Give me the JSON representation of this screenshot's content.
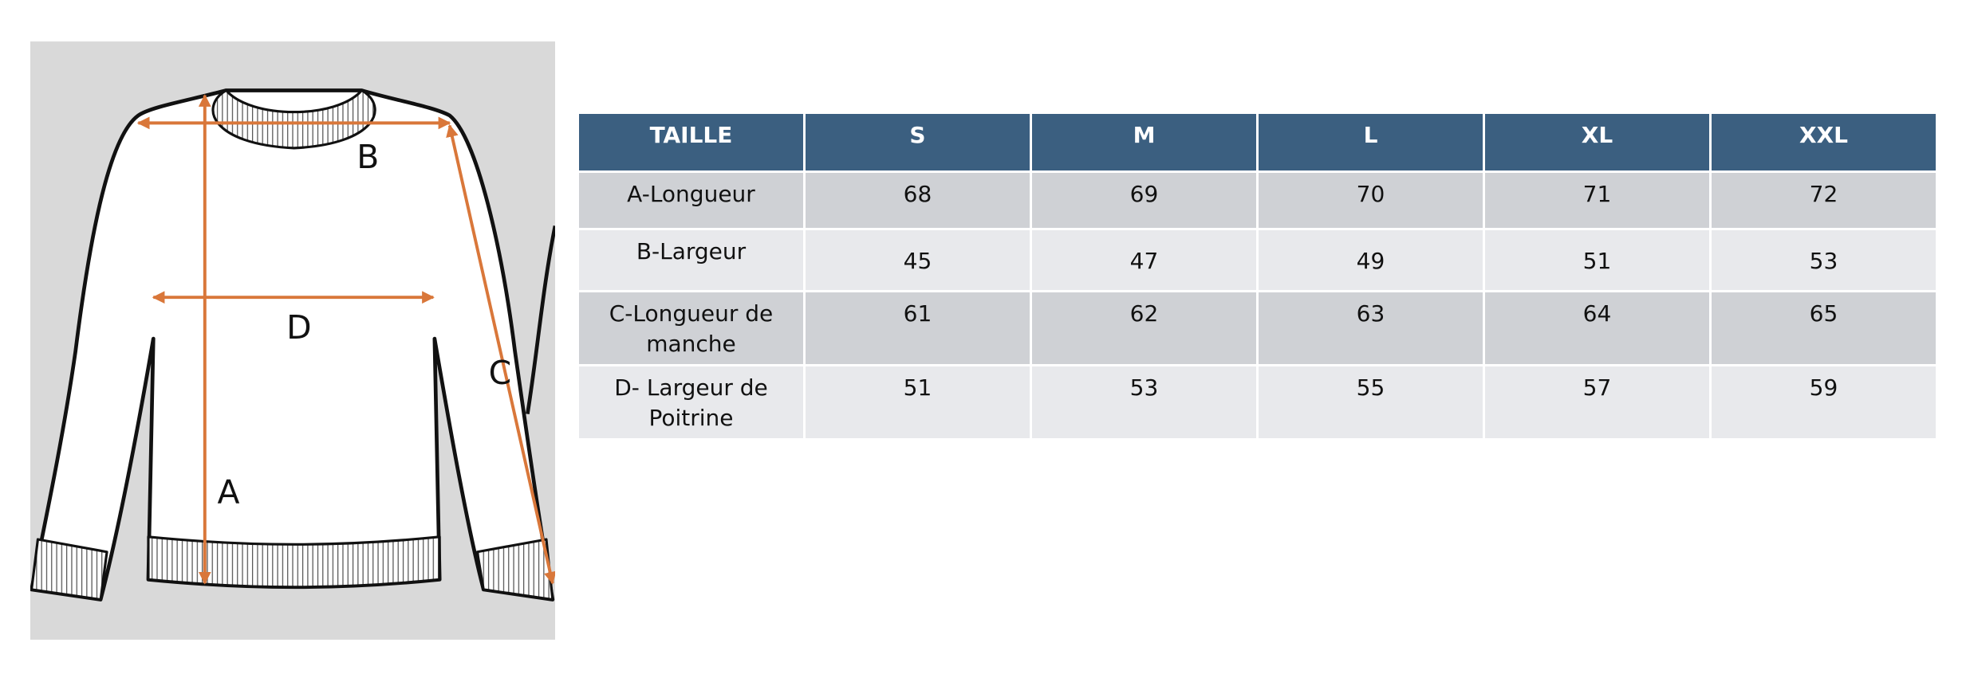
{
  "diagram": {
    "labels": [
      "A",
      "B",
      "C",
      "D"
    ]
  },
  "table": {
    "header": [
      "TAILLE",
      "S",
      "M",
      "L",
      "XL",
      "XXL"
    ],
    "rows": [
      [
        "A-Longueur",
        "68",
        "69",
        "70",
        "71",
        "72"
      ],
      [
        "B-Largeur",
        "45",
        "47",
        "49",
        "51",
        "53"
      ],
      [
        "C-Longueur de manche",
        "61",
        "62",
        "63",
        "64",
        "65"
      ],
      [
        "D- Largeur de Poitrine",
        "51",
        "53",
        "55",
        "57",
        "59"
      ]
    ]
  }
}
